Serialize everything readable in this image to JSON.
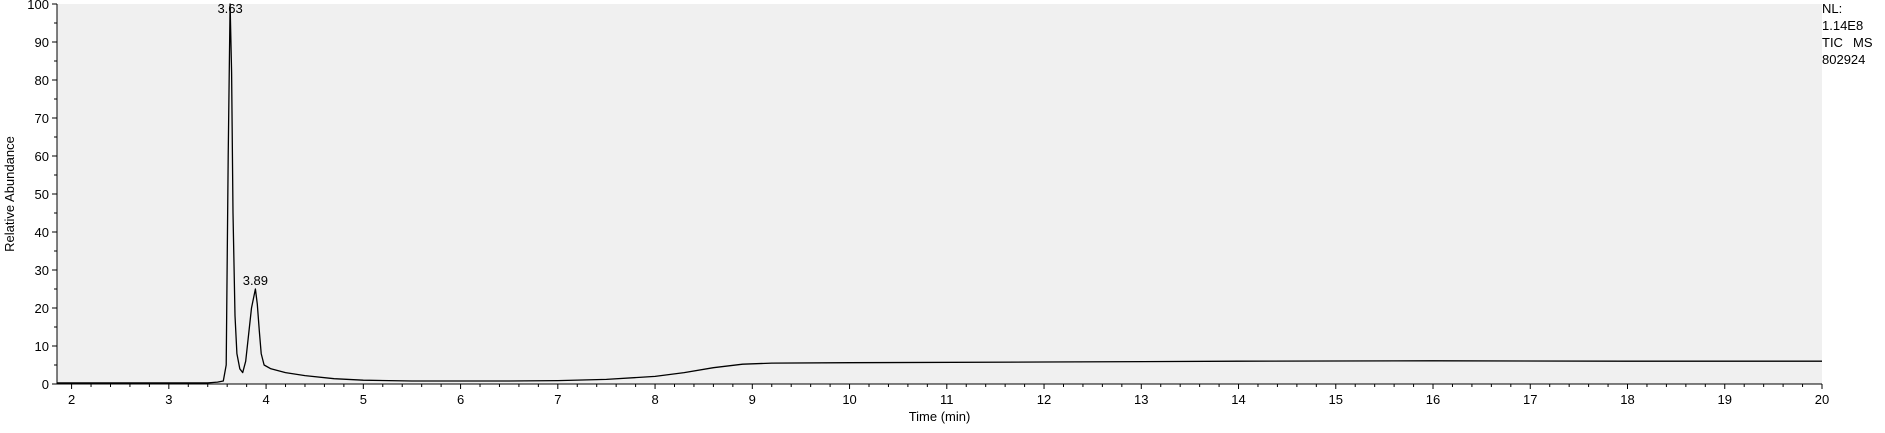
{
  "chart_data": {
    "type": "line",
    "xlabel": "Time (min)",
    "ylabel": "Relative Abundance",
    "xlim": [
      1.85,
      20
    ],
    "ylim": [
      0,
      100
    ],
    "x_ticks": [
      2,
      3,
      4,
      5,
      6,
      7,
      8,
      9,
      10,
      11,
      12,
      13,
      14,
      15,
      16,
      17,
      18,
      19,
      20
    ],
    "y_ticks": [
      0,
      10,
      20,
      30,
      40,
      50,
      60,
      70,
      80,
      90,
      100
    ],
    "grid": false,
    "series": [
      {
        "color": "#000000",
        "points": [
          [
            1.85,
            0.3
          ],
          [
            3.4,
            0.3
          ],
          [
            3.5,
            0.5
          ],
          [
            3.56,
            0.8
          ],
          [
            3.59,
            5
          ],
          [
            3.61,
            60
          ],
          [
            3.63,
            100
          ],
          [
            3.645,
            82
          ],
          [
            3.66,
            45
          ],
          [
            3.68,
            18
          ],
          [
            3.7,
            8
          ],
          [
            3.73,
            4
          ],
          [
            3.76,
            3
          ],
          [
            3.79,
            6
          ],
          [
            3.82,
            13
          ],
          [
            3.85,
            20
          ],
          [
            3.89,
            25
          ],
          [
            3.91,
            21
          ],
          [
            3.93,
            14
          ],
          [
            3.95,
            8
          ],
          [
            3.98,
            5
          ],
          [
            4.05,
            4
          ],
          [
            4.2,
            3
          ],
          [
            4.4,
            2.2
          ],
          [
            4.7,
            1.4
          ],
          [
            5.0,
            1.0
          ],
          [
            5.5,
            0.8
          ],
          [
            6.5,
            0.8
          ],
          [
            7.0,
            0.9
          ],
          [
            7.5,
            1.2
          ],
          [
            8.0,
            2.0
          ],
          [
            8.3,
            3.0
          ],
          [
            8.6,
            4.3
          ],
          [
            8.9,
            5.2
          ],
          [
            9.2,
            5.5
          ],
          [
            10.0,
            5.6
          ],
          [
            12.0,
            5.8
          ],
          [
            14.0,
            6.0
          ],
          [
            16.0,
            6.1
          ],
          [
            18.0,
            6.0
          ],
          [
            20.0,
            6.0
          ]
        ]
      }
    ],
    "annotations": [
      {
        "x": 3.63,
        "y": 100,
        "text": "3.63"
      },
      {
        "x": 3.89,
        "y": 25,
        "text": "3.89"
      }
    ]
  },
  "info": {
    "nl_label": "NL:",
    "nl_value": "1.14E8",
    "trace_type": "TIC",
    "trace_mode": "MS",
    "sample_id": "802924"
  }
}
